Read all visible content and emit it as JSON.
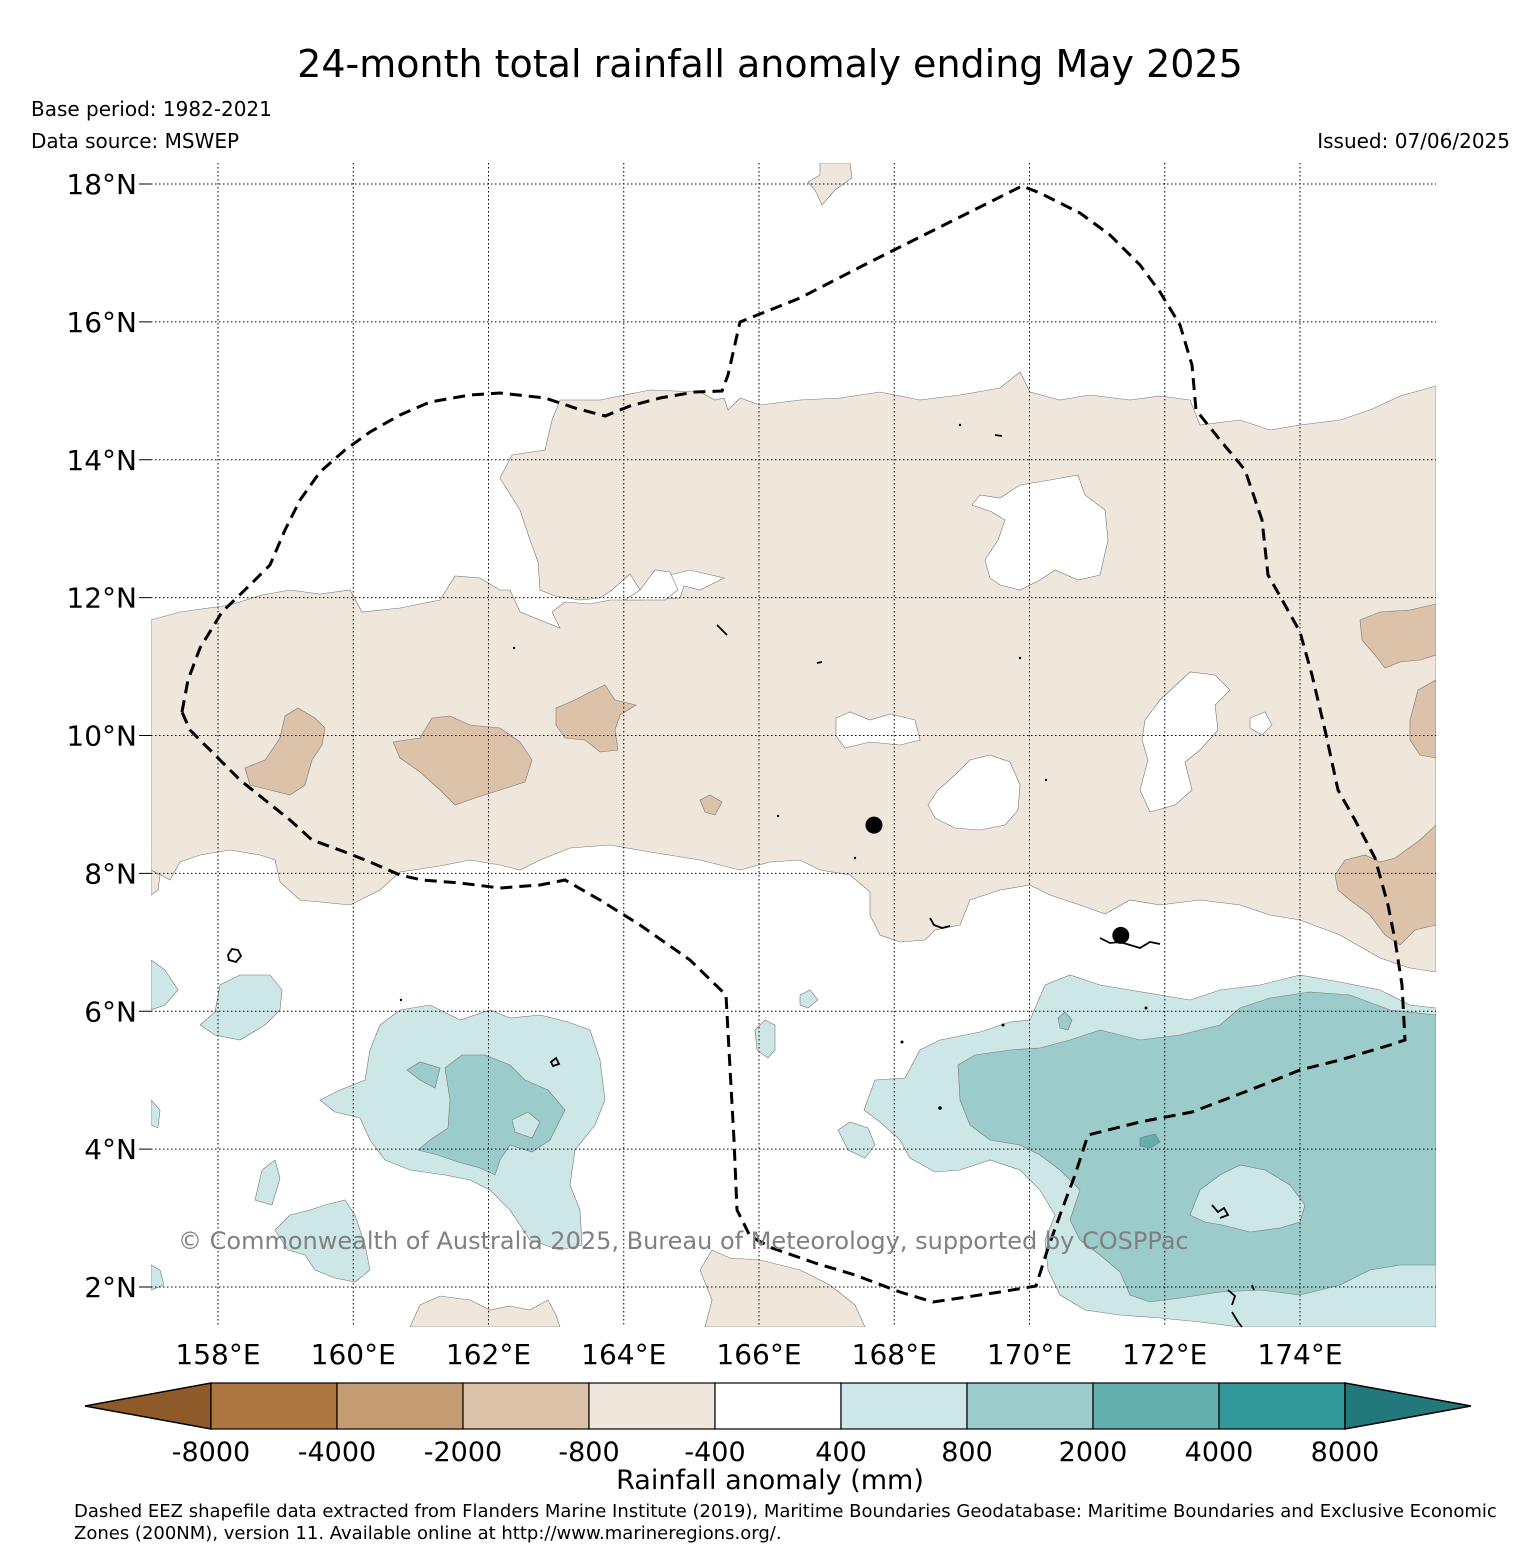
{
  "title": "24-month total rainfall anomaly ending May 2025",
  "meta": {
    "base_period": "Base period: 1982-2021",
    "data_source": "Data source: MSWEP",
    "issued": "Issued: 07/06/2025"
  },
  "map": {
    "lat_labels": [
      "18°N",
      "16°N",
      "14°N",
      "12°N",
      "10°N",
      "8°N",
      "6°N",
      "4°N",
      "2°N"
    ],
    "lon_labels": [
      "158°E",
      "160°E",
      "162°E",
      "164°E",
      "166°E",
      "168°E",
      "170°E",
      "172°E",
      "174°E"
    ],
    "lat_range": [
      1.5,
      18.3
    ],
    "lon_range": [
      157.0,
      176.0
    ],
    "grid": true,
    "markers": [
      {
        "name": "marker-1",
        "lon": 167.7,
        "lat": 8.7
      },
      {
        "name": "marker-2",
        "lon": 171.35,
        "lat": 7.1
      }
    ],
    "copyright": "© Commonwealth of Australia 2025, Bureau of Meteorology, supported by COSPPac"
  },
  "colorbar": {
    "title": "Rainfall anomaly (mm)",
    "tick_labels": [
      "-8000",
      "-4000",
      "-2000",
      "-800",
      "-400",
      "400",
      "800",
      "2000",
      "4000",
      "8000"
    ],
    "colors": [
      "#8f5a2a",
      "#ad7640",
      "#c39c72",
      "#dbc2a9",
      "#efe6dc",
      "#ffffff",
      "#cde6e6",
      "#9bcbcb",
      "#62afae",
      "#31999a",
      "#22787a"
    ]
  },
  "footnote": "Dashed EEZ shapefile data extracted from Flanders Marine Institute (2019), Maritime Boundaries Geodatabase: Maritime Boundaries and Exclusive Economic Zones (200NM), version 11. Available online at http://www.marineregions.org/."
}
